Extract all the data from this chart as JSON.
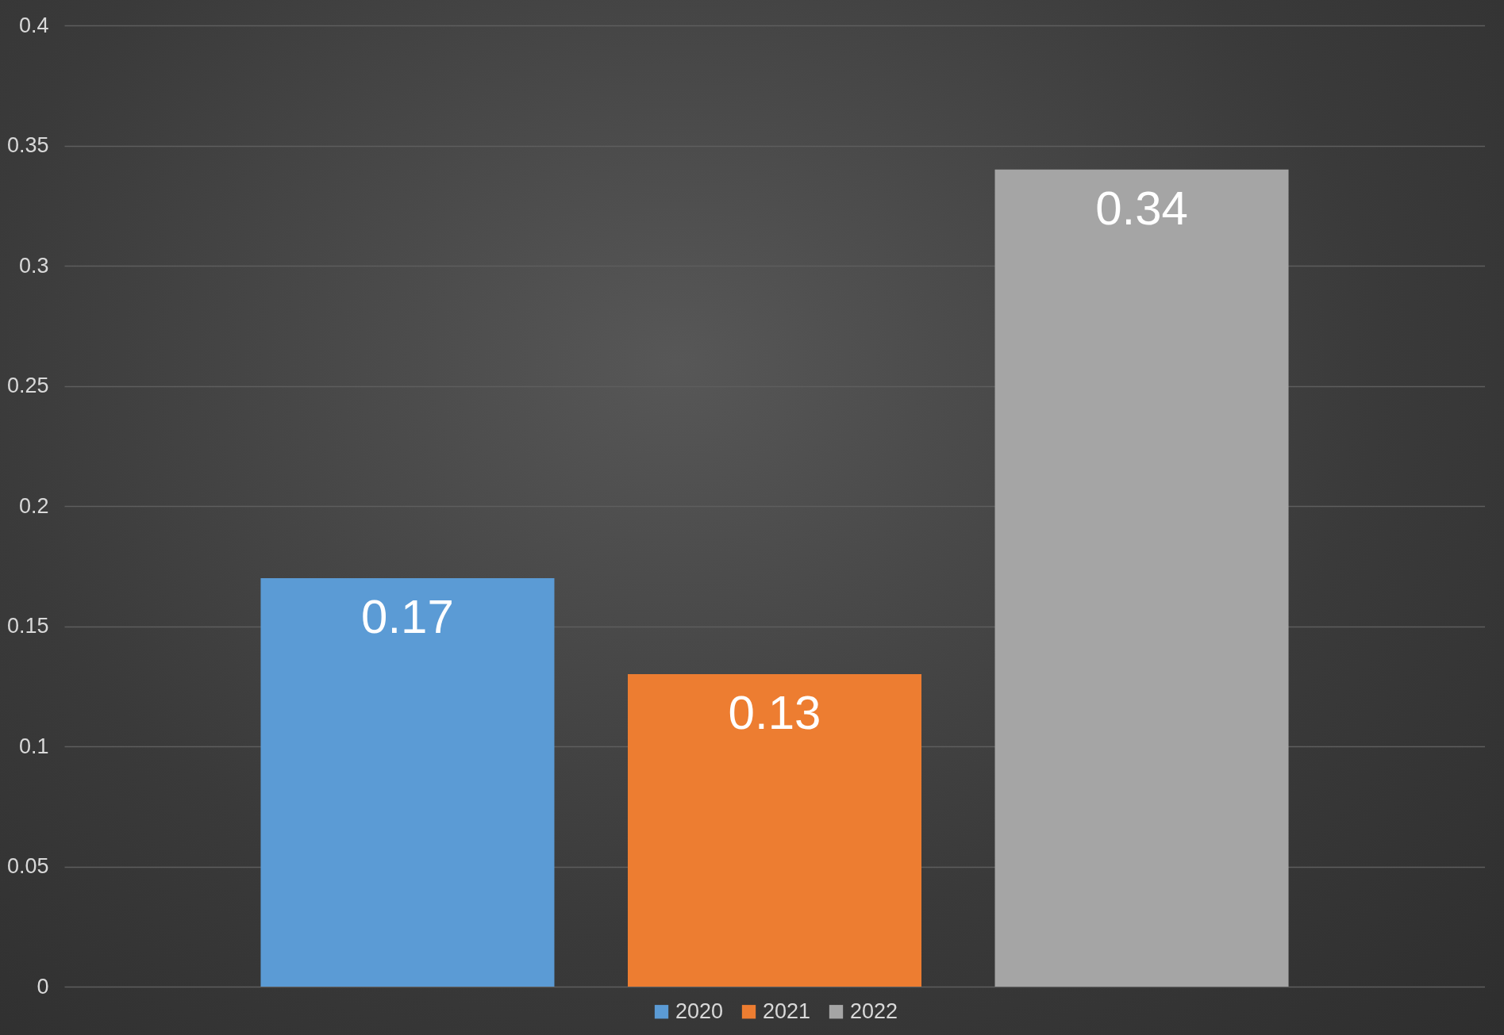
{
  "chart_data": {
    "type": "bar",
    "categories": [
      null
    ],
    "series": [
      {
        "name": "2020",
        "color": "#5b9bd5",
        "values": [
          0.17
        ]
      },
      {
        "name": "2021",
        "color": "#ed7d31",
        "values": [
          0.13
        ]
      },
      {
        "name": "2022",
        "color": "#a5a5a5",
        "values": [
          0.34
        ]
      }
    ],
    "ylim": [
      0,
      0.4
    ],
    "yticks": [
      0,
      0.05,
      0.1,
      0.15,
      0.2,
      0.25,
      0.3,
      0.35,
      0.4
    ],
    "grid": true,
    "legend": "bottom",
    "data_labels": true
  }
}
